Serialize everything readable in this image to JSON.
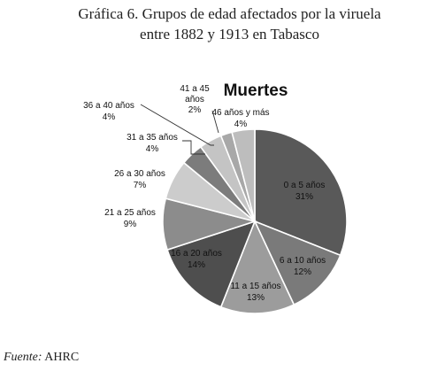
{
  "caption": {
    "line1": "Gráfica 6. Grupos de edad afectados por la viruela",
    "line2": "entre 1882 y 1913 en Tabasco"
  },
  "source": {
    "label": "Fuente:",
    "text": "AHRC"
  },
  "chart_data": {
    "type": "pie",
    "title": "Muertes",
    "slices": [
      {
        "label": "0 a 5 años",
        "value": 31,
        "display": "31%",
        "color": "#595959"
      },
      {
        "label": "6 a 10 años",
        "value": 12,
        "display": "12%",
        "color": "#7a7a7a"
      },
      {
        "label": "11 a 15 años",
        "value": 13,
        "display": "13%",
        "color": "#9c9c9c"
      },
      {
        "label": "16 a 20 años",
        "value": 14,
        "display": "14%",
        "color": "#4e4e4e"
      },
      {
        "label": "21 a 25 años",
        "value": 9,
        "display": "9%",
        "color": "#8c8c8c"
      },
      {
        "label": "26 a 30 años",
        "value": 7,
        "display": "7%",
        "color": "#cccccc"
      },
      {
        "label": "31 a 35 años",
        "value": 4,
        "display": "4%",
        "color": "#7c7c7c"
      },
      {
        "label": "36 a 40 años",
        "value": 4,
        "display": "4%",
        "color": "#c4c4c4"
      },
      {
        "label": "41 a 45 años",
        "value": 2,
        "display": "2%",
        "color": "#a8a8a8"
      },
      {
        "label": "46 años y más",
        "value": 4,
        "display": "4%",
        "color": "#bdbdbd"
      }
    ]
  }
}
